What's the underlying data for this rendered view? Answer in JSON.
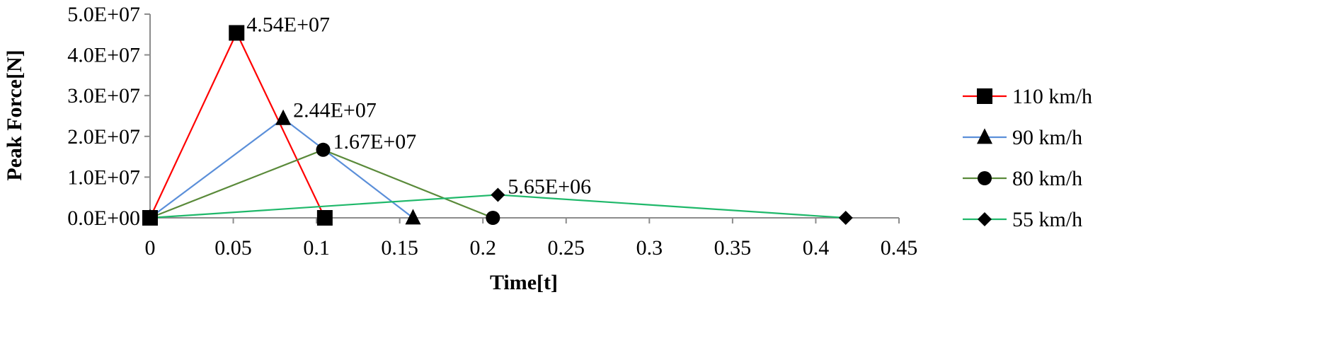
{
  "chart_data": {
    "type": "line",
    "title": "",
    "xlabel": "Time[t]",
    "ylabel": "Peak Force[N]",
    "xlim": [
      0,
      0.45
    ],
    "ylim": [
      0,
      50000000
    ],
    "x_ticks": [
      "0",
      "0.05",
      "0.1",
      "0.15",
      "0.2",
      "0.25",
      "0.3",
      "0.35",
      "0.4",
      "0.45"
    ],
    "y_ticks": [
      "0.0E+00",
      "1.0E+07",
      "2.0E+07",
      "3.0E+07",
      "4.0E+07",
      "5.0E+07"
    ],
    "grid": false,
    "legend_position": "right",
    "series": [
      {
        "name": "110 km/h",
        "color": "#ff0000",
        "marker": "square",
        "points": [
          [
            0,
            0
          ],
          [
            0.052,
            45400000
          ],
          [
            0.105,
            0
          ]
        ],
        "labels": [
          null,
          "4.54E+07",
          null
        ]
      },
      {
        "name": "90 km/h",
        "color": "#5b8fd9",
        "marker": "triangle",
        "points": [
          [
            0,
            0
          ],
          [
            0.08,
            24400000
          ],
          [
            0.158,
            0
          ]
        ],
        "labels": [
          null,
          "2.44E+07",
          null
        ]
      },
      {
        "name": "80 km/h",
        "color": "#5a8a3a",
        "marker": "circle",
        "points": [
          [
            0,
            0
          ],
          [
            0.104,
            16700000
          ],
          [
            0.206,
            0
          ]
        ],
        "labels": [
          null,
          "1.67E+07",
          null
        ]
      },
      {
        "name": "55 km/h",
        "color": "#1fb86a",
        "marker": "diamond",
        "points": [
          [
            0,
            0
          ],
          [
            0.209,
            5650000
          ],
          [
            0.418,
            0
          ]
        ],
        "labels": [
          null,
          "5.65E+06",
          null
        ]
      }
    ]
  }
}
